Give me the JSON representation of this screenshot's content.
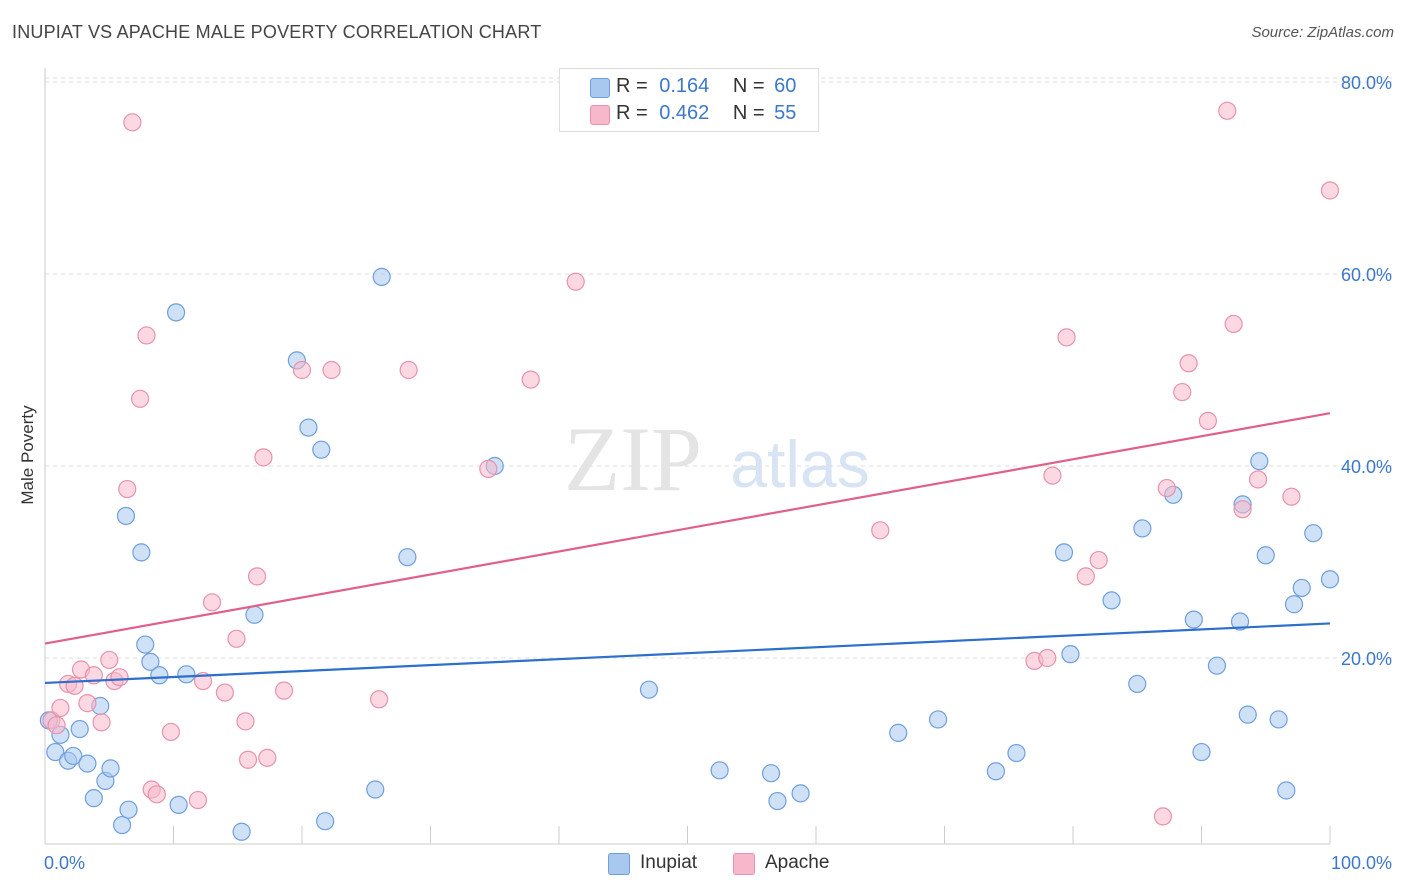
{
  "header": {
    "title": "INUPIAT VS APACHE MALE POVERTY CORRELATION CHART",
    "source": "Source: ZipAtlas.com"
  },
  "watermark": {
    "zip": "ZIP",
    "atlas": "atlas"
  },
  "legend": {
    "rows": [
      {
        "r_label": "R =",
        "r_value": "0.164",
        "n_label": "N =",
        "n_value": "60",
        "color": "#a8c8f0"
      },
      {
        "r_label": "R =",
        "r_value": "0.462",
        "n_label": "N =",
        "n_value": "55",
        "color": "#f7b8cb"
      }
    ],
    "bottom": [
      {
        "label": "Inupiat",
        "color": "#a8c8f0"
      },
      {
        "label": "Apache",
        "color": "#f7b8cb"
      }
    ]
  },
  "chart_data": {
    "type": "scatter",
    "title": "INUPIAT VS APACHE MALE POVERTY CORRELATION CHART",
    "xlabel": "",
    "ylabel": "Male Poverty",
    "xlim": [
      0,
      100
    ],
    "ylim": [
      0,
      84
    ],
    "x_tick_labels": [
      "0.0%",
      "100.0%"
    ],
    "y_ticks": [
      20,
      40,
      60,
      80
    ],
    "y_tick_labels": [
      "20.0%",
      "40.0%",
      "60.0%",
      "80.0%"
    ],
    "grid": true,
    "legend_position": "top-center",
    "series": [
      {
        "name": "Inupiat",
        "color": "#a8c8f0",
        "stroke": "#6f9fdc",
        "line_color": "#2d6fcc",
        "trend": {
          "x": [
            0,
            100
          ],
          "y": [
            17.4,
            23.6
          ]
        },
        "points": [
          [
            0.3,
            13.5
          ],
          [
            1.2,
            12.0
          ],
          [
            0.8,
            10.2
          ],
          [
            1.8,
            9.3
          ],
          [
            2.2,
            9.8
          ],
          [
            2.7,
            12.6
          ],
          [
            3.3,
            9.0
          ],
          [
            3.8,
            5.4
          ],
          [
            4.3,
            15.0
          ],
          [
            4.7,
            7.2
          ],
          [
            5.1,
            8.5
          ],
          [
            6.0,
            2.6
          ],
          [
            6.5,
            4.2
          ],
          [
            7.5,
            31.0
          ],
          [
            7.8,
            21.4
          ],
          [
            8.2,
            19.6
          ],
          [
            8.9,
            18.2
          ],
          [
            10.2,
            56.0
          ],
          [
            10.4,
            4.7
          ],
          [
            11.0,
            18.3
          ],
          [
            6.3,
            34.8
          ],
          [
            15.3,
            1.9
          ],
          [
            16.3,
            24.5
          ],
          [
            19.6,
            51.0
          ],
          [
            20.5,
            44.0
          ],
          [
            21.5,
            41.7
          ],
          [
            21.8,
            3.0
          ],
          [
            25.7,
            6.3
          ],
          [
            26.2,
            59.7
          ],
          [
            28.2,
            30.5
          ],
          [
            35.0,
            40.0
          ],
          [
            47.0,
            16.7
          ],
          [
            52.5,
            8.3
          ],
          [
            56.5,
            8.0
          ],
          [
            57.0,
            5.1
          ],
          [
            58.8,
            5.9
          ],
          [
            66.4,
            12.2
          ],
          [
            69.5,
            13.6
          ],
          [
            74.0,
            8.2
          ],
          [
            75.6,
            10.1
          ],
          [
            79.3,
            31.0
          ],
          [
            79.8,
            20.4
          ],
          [
            83.0,
            26.0
          ],
          [
            85.0,
            17.3
          ],
          [
            85.4,
            33.5
          ],
          [
            87.8,
            37.0
          ],
          [
            89.4,
            24.0
          ],
          [
            90.0,
            10.2
          ],
          [
            91.2,
            19.2
          ],
          [
            93.0,
            23.8
          ],
          [
            93.2,
            36.0
          ],
          [
            93.6,
            14.1
          ],
          [
            94.5,
            40.5
          ],
          [
            95.0,
            30.7
          ],
          [
            96.0,
            13.6
          ],
          [
            96.6,
            6.2
          ],
          [
            97.2,
            25.6
          ],
          [
            97.8,
            27.3
          ],
          [
            98.7,
            33.0
          ],
          [
            100.0,
            28.2
          ]
        ]
      },
      {
        "name": "Apache",
        "color": "#f7b8cb",
        "stroke": "#e892ac",
        "line_color": "#e0608a",
        "trend": {
          "x": [
            0,
            100
          ],
          "y": [
            21.5,
            45.5
          ]
        },
        "points": [
          [
            0.5,
            13.5
          ],
          [
            0.9,
            13.0
          ],
          [
            1.2,
            14.8
          ],
          [
            1.8,
            17.3
          ],
          [
            2.3,
            17.1
          ],
          [
            2.8,
            18.8
          ],
          [
            3.3,
            15.3
          ],
          [
            3.8,
            18.2
          ],
          [
            4.4,
            13.3
          ],
          [
            5.0,
            19.8
          ],
          [
            5.4,
            17.6
          ],
          [
            5.8,
            18.0
          ],
          [
            6.4,
            37.6
          ],
          [
            6.8,
            75.8
          ],
          [
            7.4,
            47.0
          ],
          [
            7.9,
            53.6
          ],
          [
            8.3,
            6.3
          ],
          [
            8.7,
            5.8
          ],
          [
            9.8,
            12.3
          ],
          [
            11.9,
            5.2
          ],
          [
            12.3,
            17.6
          ],
          [
            13.0,
            25.8
          ],
          [
            14.0,
            16.4
          ],
          [
            14.9,
            22.0
          ],
          [
            15.6,
            13.4
          ],
          [
            15.8,
            9.4
          ],
          [
            16.5,
            28.5
          ],
          [
            17.0,
            40.9
          ],
          [
            17.3,
            9.6
          ],
          [
            18.6,
            16.6
          ],
          [
            20.0,
            50.0
          ],
          [
            22.3,
            50.0
          ],
          [
            26.0,
            15.7
          ],
          [
            28.3,
            50.0
          ],
          [
            34.5,
            39.7
          ],
          [
            37.8,
            49.0
          ],
          [
            41.3,
            59.2
          ],
          [
            65.0,
            33.3
          ],
          [
            77.0,
            19.7
          ],
          [
            78.0,
            20.0
          ],
          [
            78.4,
            39.0
          ],
          [
            79.5,
            53.4
          ],
          [
            81.0,
            28.5
          ],
          [
            82.0,
            30.2
          ],
          [
            87.0,
            3.5
          ],
          [
            87.3,
            37.7
          ],
          [
            88.5,
            47.7
          ],
          [
            89.0,
            50.7
          ],
          [
            90.5,
            44.7
          ],
          [
            92.0,
            77.0
          ],
          [
            92.5,
            54.8
          ],
          [
            93.2,
            35.5
          ],
          [
            94.4,
            38.6
          ],
          [
            97.0,
            36.8
          ],
          [
            100.0,
            68.7
          ]
        ]
      }
    ]
  }
}
